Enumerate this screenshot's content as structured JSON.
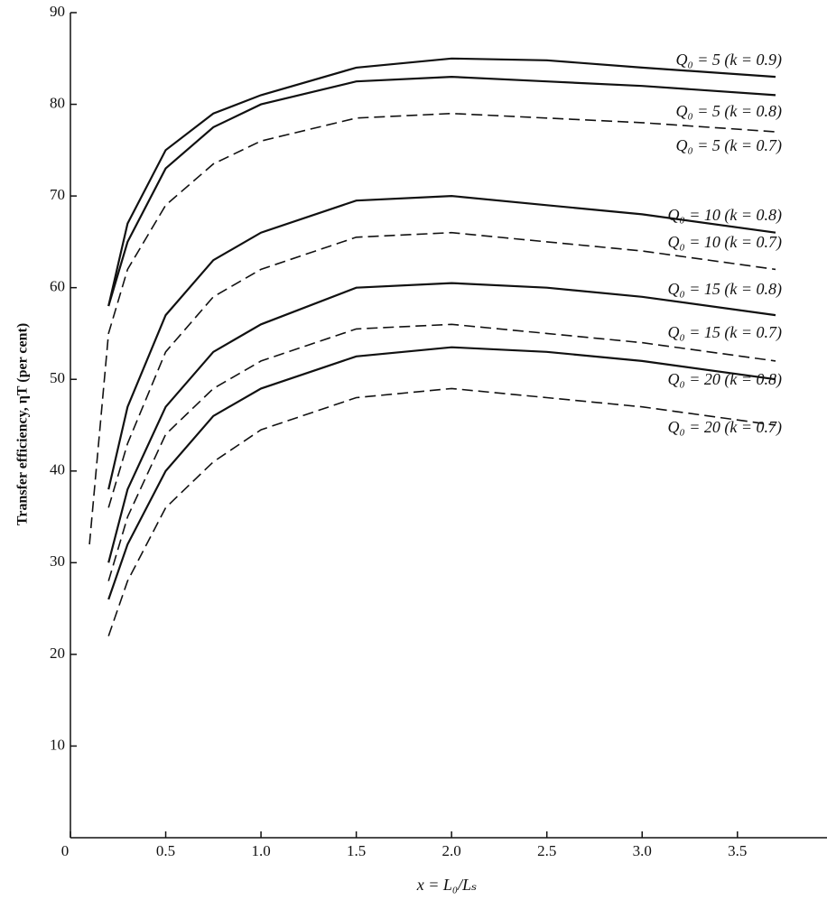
{
  "chart_data": {
    "type": "line",
    "xlabel": "x = L₀/Lₛ",
    "ylabel": "Transfer efficiency, ηT (per cent)",
    "x": [
      0.1,
      0.2,
      0.3,
      0.5,
      0.75,
      1.0,
      1.5,
      2.0,
      2.5,
      3.0,
      3.7
    ],
    "xlim": [
      0,
      3.97
    ],
    "ylim": [
      0,
      90
    ],
    "xticks": [
      0,
      0.5,
      {
        "value": 1,
        "label": "1.0"
      },
      1.5,
      {
        "value": 2,
        "label": "2.0"
      },
      2.5,
      {
        "value": 3,
        "label": "3.0"
      },
      3.5
    ],
    "yticks": [
      10,
      20,
      30,
      40,
      50,
      60,
      70,
      80,
      90
    ],
    "grid": false,
    "series": [
      {
        "name": "Q₀ = 5 (k = 0.9)",
        "color": "#111111",
        "dashed": false,
        "values": [
          null,
          58,
          67,
          75,
          79,
          81,
          84,
          85,
          84.8,
          84,
          83
        ]
      },
      {
        "name": "Q₀ = 5 (k = 0.8)",
        "color": "#111111",
        "dashed": false,
        "values": [
          null,
          58,
          65,
          73,
          77.5,
          80,
          82.5,
          83,
          82.5,
          82,
          81
        ]
      },
      {
        "name": "Q₀ = 5 (k = 0.7)",
        "color": "#111111",
        "dashed": true,
        "values": [
          32,
          55,
          62,
          69,
          73.5,
          76,
          78.5,
          79,
          78.5,
          78,
          77
        ]
      },
      {
        "name": "Q₀ = 10 (k = 0.8)",
        "color": "#111111",
        "dashed": false,
        "values": [
          null,
          38,
          47,
          57,
          63,
          66,
          69.5,
          70,
          69,
          68,
          66
        ]
      },
      {
        "name": "Q₀ = 10 (k = 0.7)",
        "color": "#111111",
        "dashed": true,
        "values": [
          null,
          36,
          43,
          53,
          59,
          62,
          65.5,
          66,
          65,
          64,
          62
        ]
      },
      {
        "name": "Q₀ = 15 (k = 0.8)",
        "color": "#111111",
        "dashed": false,
        "values": [
          null,
          30,
          38,
          47,
          53,
          56,
          60,
          60.5,
          60,
          59,
          57
        ]
      },
      {
        "name": "Q₀ = 15 (k = 0.7)",
        "color": "#111111",
        "dashed": true,
        "values": [
          null,
          28,
          35,
          44,
          49,
          52,
          55.5,
          56,
          55,
          54,
          52
        ]
      },
      {
        "name": "Q₀ = 20 (k = 0.8)",
        "color": "#111111",
        "dashed": false,
        "values": [
          null,
          26,
          32,
          40,
          46,
          49,
          52.5,
          53.5,
          53,
          52,
          50
        ]
      },
      {
        "name": "Q₀ = 20 (k = 0.7)",
        "color": "#111111",
        "dashed": true,
        "values": [
          null,
          22,
          28,
          36,
          41,
          44.5,
          48,
          49,
          48,
          47,
          45
        ]
      }
    ]
  }
}
